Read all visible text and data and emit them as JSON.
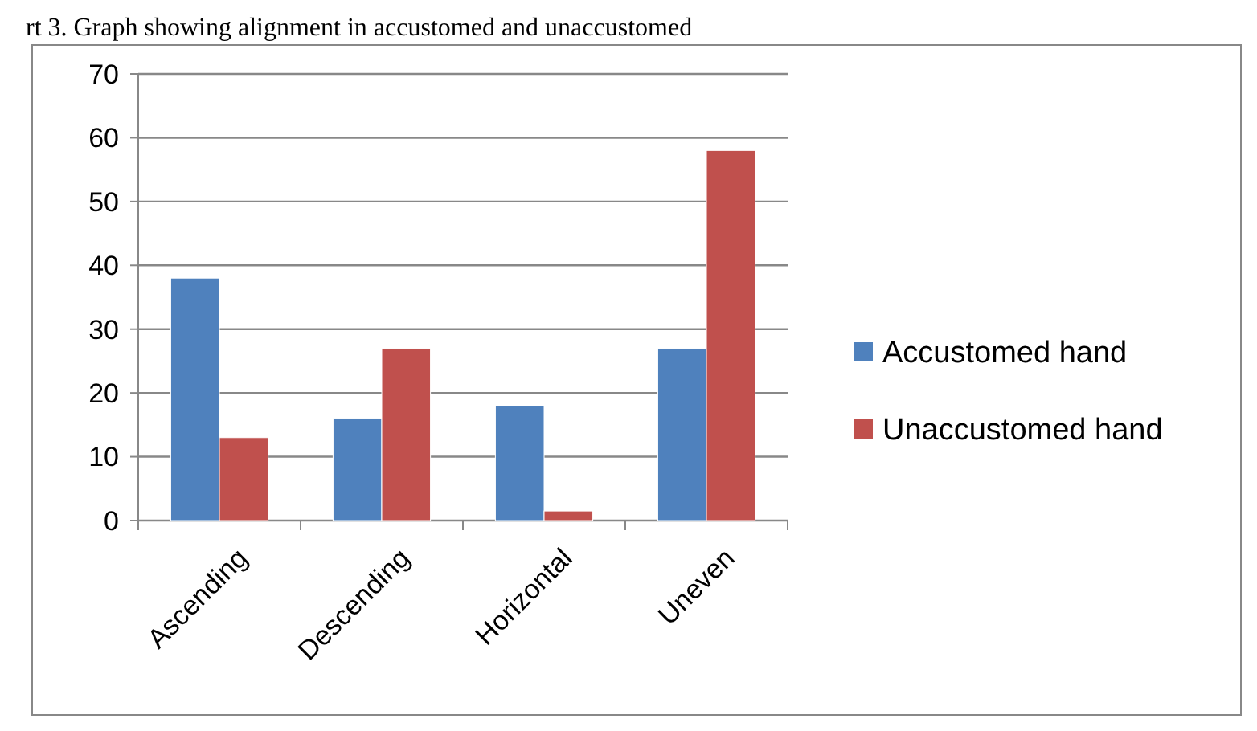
{
  "chart_data": {
    "type": "bar",
    "title": "rt 3.  Graph showing alignment in accustomed and unaccustomed",
    "categories": [
      "Ascending",
      "Descending",
      "Horizontal",
      "Uneven"
    ],
    "series": [
      {
        "name": "Accustomed hand",
        "color": "#4f81bd",
        "values": [
          38,
          16,
          18,
          27
        ]
      },
      {
        "name": "Unaccustomed hand",
        "color": "#c0504d",
        "values": [
          13,
          27,
          1.5,
          58
        ]
      }
    ],
    "ylim": [
      0,
      70
    ],
    "yticks": [
      0,
      10,
      20,
      30,
      40,
      50,
      60,
      70
    ],
    "grid": "y",
    "legend": "right"
  }
}
